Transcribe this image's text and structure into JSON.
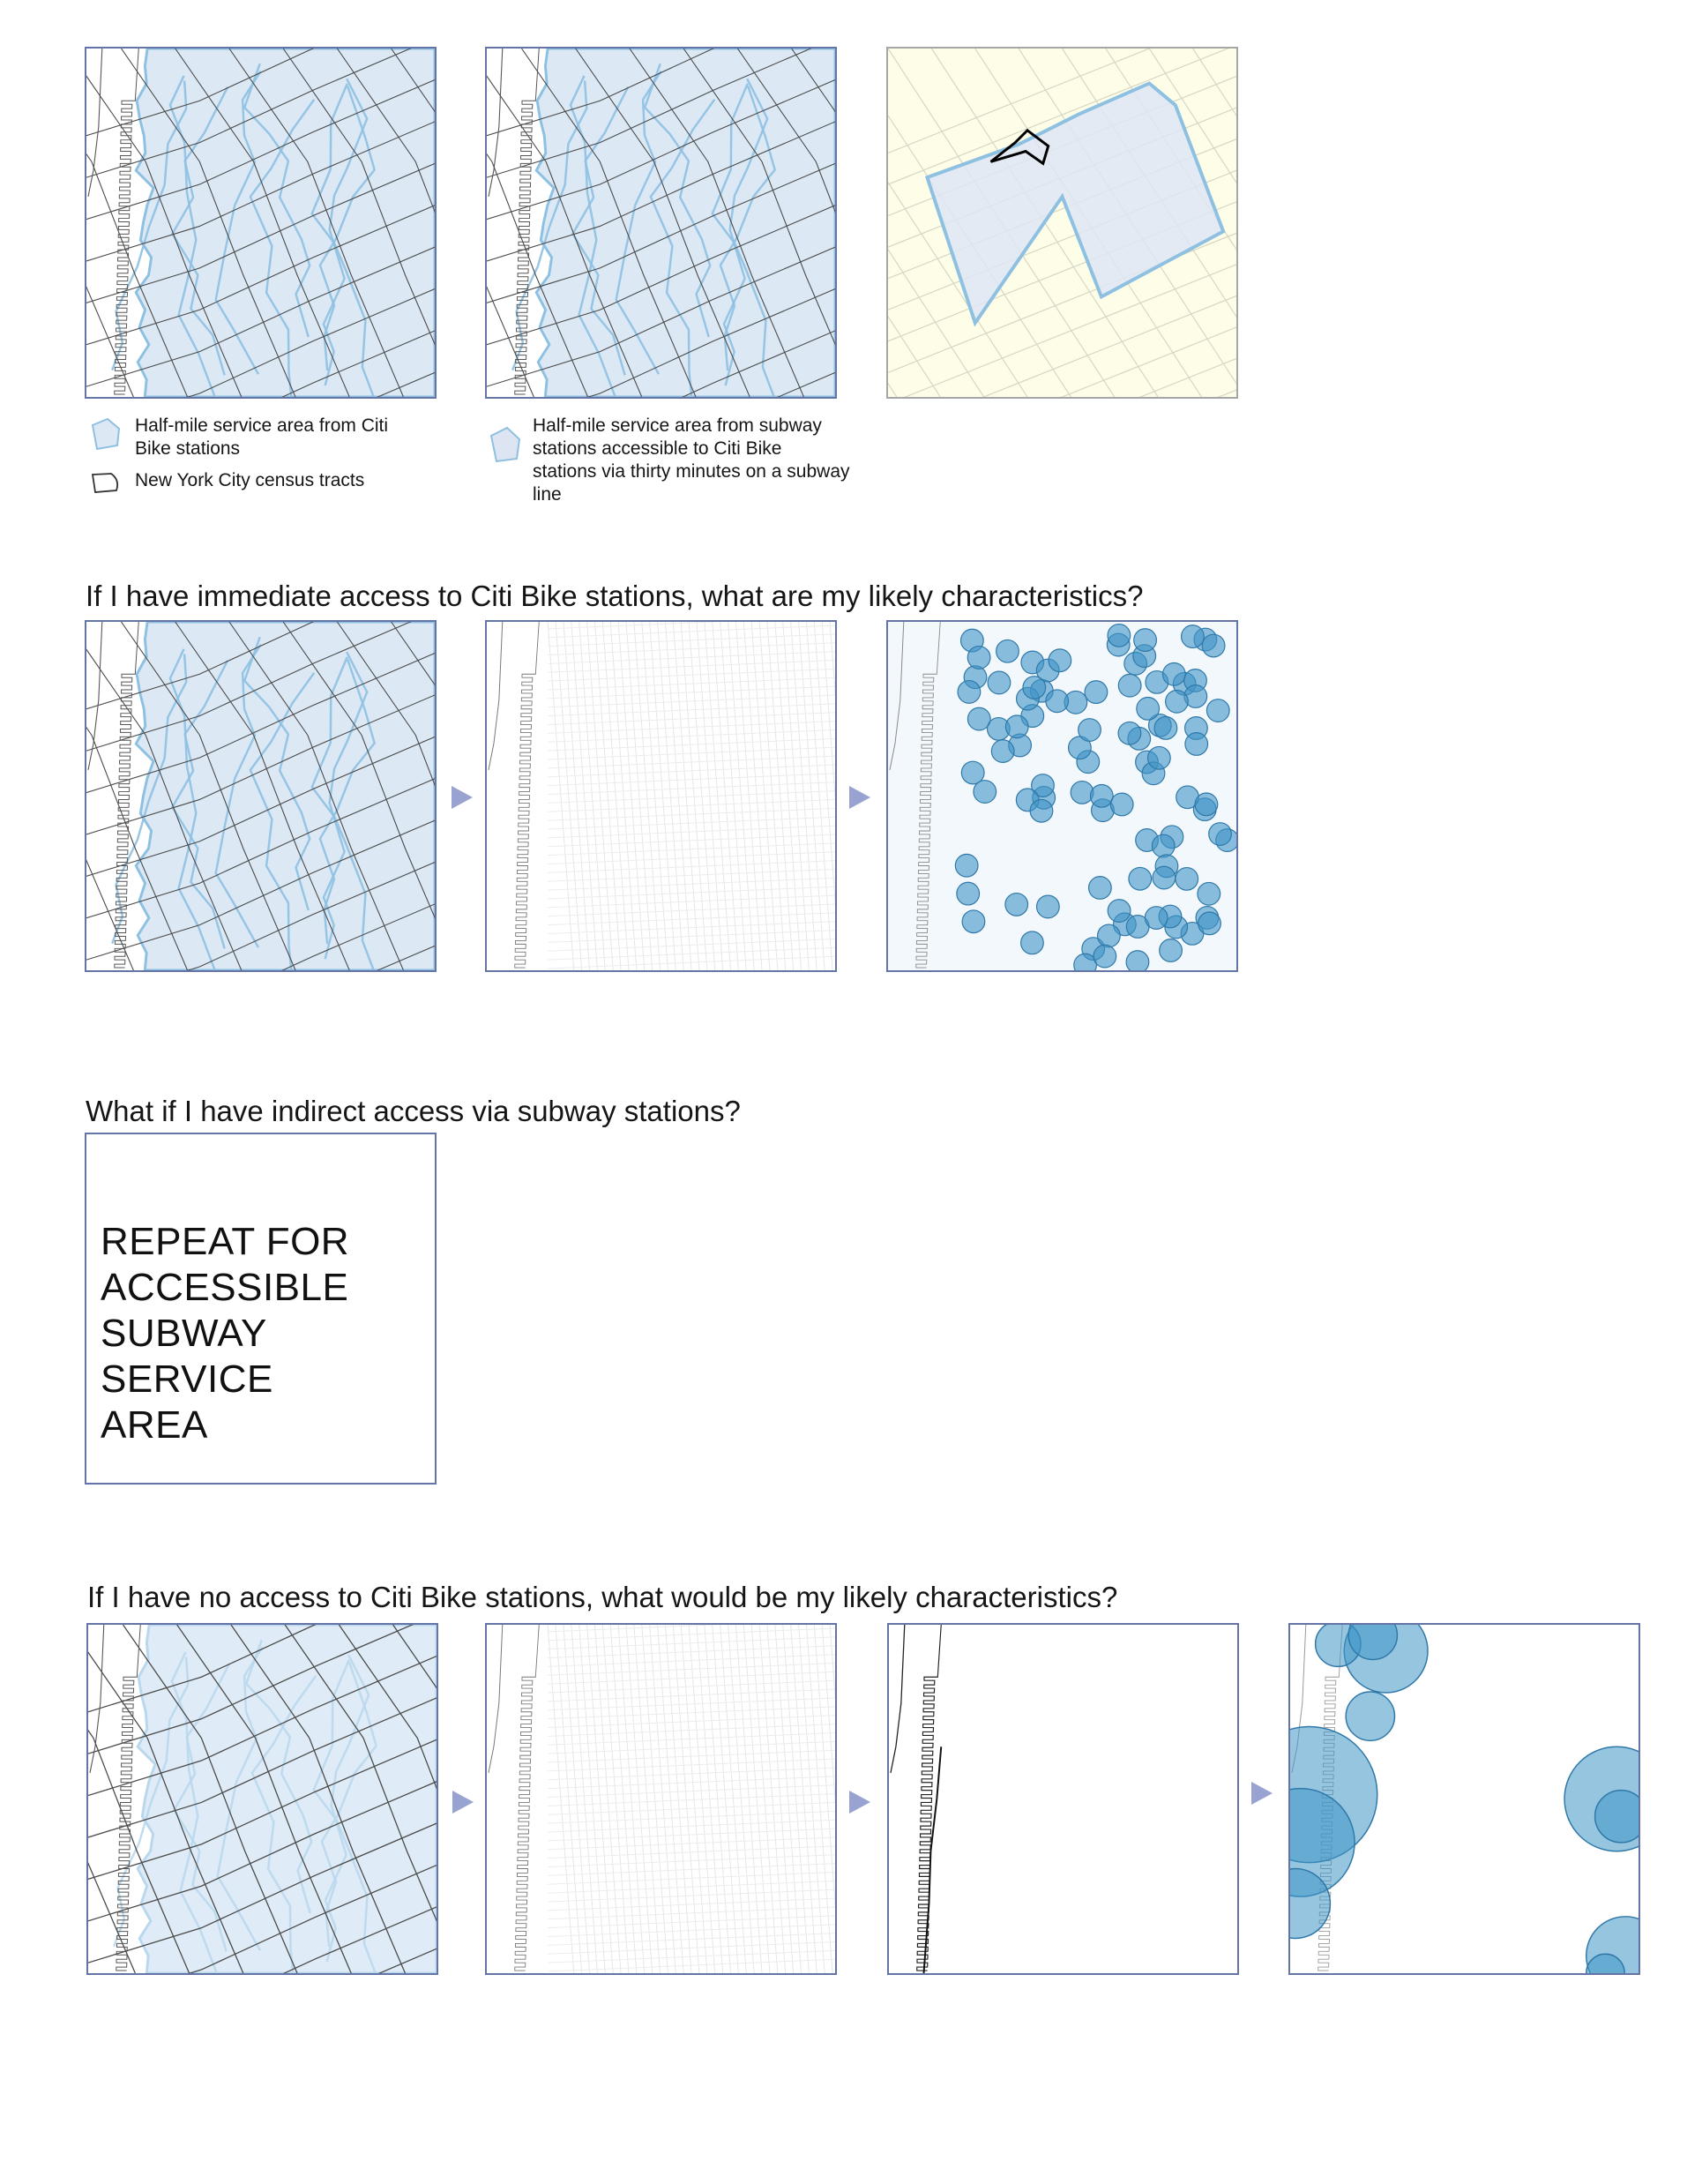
{
  "legend": {
    "citibike_area": "Half-mile service area from Citi Bike stations",
    "census_tracts": "New York City census tracts",
    "subway_area": "Half-mile service area from subway stations accessible to Citi Bike stations via thirty minutes on a subway line"
  },
  "sections": {
    "immediate_access": "If I have immediate access to Citi Bike stations, what are my likely characteristics?",
    "indirect_access": "What if I have indirect access via subway stations?",
    "no_access": "If I have no access to Citi Bike stations, what would be my likely characteristics?"
  },
  "repeat_box_text": "REPEAT FOR\nACCESSIBLE\nSUBWAY SERVICE\nAREA",
  "colors": {
    "panel_border": "#6474a6",
    "service_area_fill": "#dce9f5",
    "service_area_edge": "#8ec0e2",
    "tract_line": "#4a4a4a",
    "bubble_fill": "#3f95c6",
    "arrow": "#99a3d2",
    "inset_background": "#fefee8"
  },
  "icons": [
    "service-area-swatch-icon",
    "census-tract-swatch-icon",
    "subway-area-swatch-icon",
    "next-step-arrow-icon"
  ]
}
